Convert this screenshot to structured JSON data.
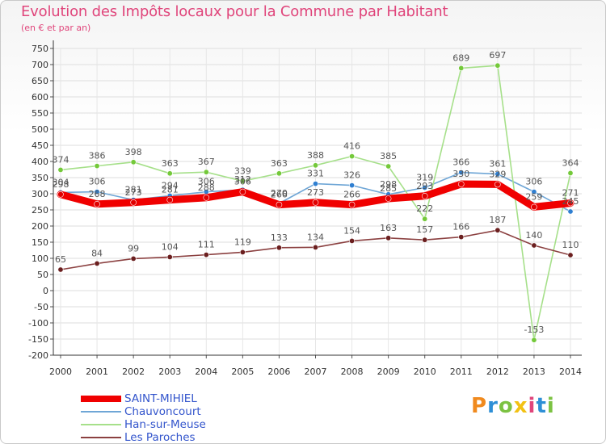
{
  "header": {
    "title": "Evolution des Impôts locaux pour la Commune par Habitant",
    "subtitle": "(en € et par an)"
  },
  "logo": {
    "text": "Proxiti",
    "letters": [
      "P",
      "r",
      "o",
      "x",
      "i",
      "t",
      "i"
    ]
  },
  "chart_data": {
    "type": "line",
    "title": "Evolution des Impôts locaux pour la Commune par Habitant",
    "subtitle": "(en € et par an)",
    "xlabel": "",
    "ylabel": "",
    "ylim": [
      -200,
      750
    ],
    "ytick_step": 50,
    "grid": true,
    "legend": "bottom-left",
    "categories": [
      "2000",
      "2001",
      "2002",
      "2003",
      "2004",
      "2005",
      "2006",
      "2007",
      "2008",
      "2009",
      "2010",
      "2011",
      "2012",
      "2013",
      "2014"
    ],
    "series": [
      {
        "name": "Chauvoncourt",
        "color": "#6fa6d6",
        "marker": "#2f7fd1",
        "values": [
          304,
          306,
          281,
          294,
          306,
          312,
          270,
          331,
          326,
          298,
          319,
          366,
          361,
          306,
          245
        ],
        "labels": [
          "304",
          "306",
          "281",
          "294",
          "306",
          "312",
          "270",
          "331",
          "326",
          "298",
          "319",
          "366",
          "361",
          "306",
          "245"
        ]
      },
      {
        "name": "Han-sur-Meuse",
        "color": "#a6e08a",
        "marker": "#74c93a",
        "values": [
          374,
          386,
          398,
          363,
          367,
          339,
          363,
          388,
          416,
          385,
          222,
          689,
          697,
          -153,
          364
        ],
        "labels": [
          "374",
          "386",
          "398",
          "363",
          "367",
          "339",
          "363",
          "388",
          "416",
          "385",
          "222",
          "689",
          "697",
          "-153",
          "364"
        ]
      },
      {
        "name": "Les Paroches",
        "color": "#8b4040",
        "marker": "#6b1f1f",
        "values": [
          65,
          84,
          99,
          104,
          111,
          119,
          133,
          134,
          154,
          163,
          157,
          166,
          187,
          140,
          110
        ],
        "labels": [
          "65",
          "84",
          "99",
          "104",
          "111",
          "119",
          "133",
          "134",
          "154",
          "163",
          "157",
          "166",
          "187",
          "140",
          "110"
        ]
      },
      {
        "name": "SAINT-MIHIEL",
        "color": "#f00000",
        "marker": "#e00000",
        "values": [
          298,
          268,
          273,
          281,
          288,
          306,
          266,
          273,
          266,
          285,
          293,
          330,
          329,
          259,
          271
        ],
        "labels": [
          "298",
          "268",
          "273",
          "281",
          "288",
          "306",
          "266",
          "273",
          "266",
          "285",
          "293",
          "330",
          "329",
          "259",
          "271"
        ]
      }
    ],
    "legend_entries": [
      {
        "name": "SAINT-MIHIEL",
        "color": "#f00000",
        "thick": true
      },
      {
        "name": "Chauvoncourt",
        "color": "#6fa6d6",
        "thick": false
      },
      {
        "name": "Han-sur-Meuse",
        "color": "#a6e08a",
        "thick": false
      },
      {
        "name": "Les Paroches",
        "color": "#8b4040",
        "thick": false
      }
    ]
  }
}
